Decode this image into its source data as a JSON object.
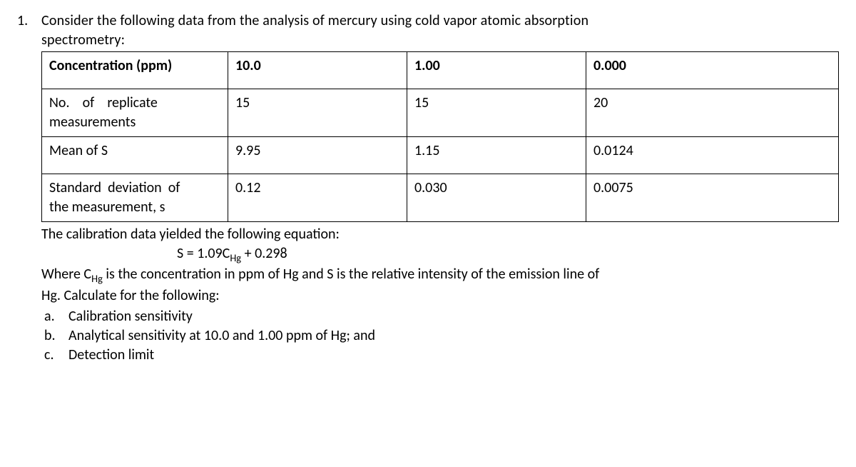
{
  "question_number": "1.",
  "intro_line1": "Consider the following data from the analysis of mercury using cold vapor atomic absorption",
  "intro_line2": "spectrometry:",
  "table": {
    "rows": [
      {
        "label": "Concentration (ppm)",
        "label_bold": true,
        "c1": "10.0",
        "c2": "1.00",
        "c3": "0.000",
        "bold_cells": true,
        "tall": true
      },
      {
        "label_html": "No.&nbsp;&nbsp;&nbsp;&nbsp;of&nbsp;&nbsp;&nbsp;&nbsp;replicate<br>measurements",
        "c1": "15",
        "c2": "15",
        "c3": "20",
        "short": true
      },
      {
        "label": "Mean of S",
        "c1": "9.95",
        "c2": "1.15",
        "c3": "0.0124",
        "tall": true
      },
      {
        "label_html": "Standard&nbsp;&nbsp;deviation&nbsp;&nbsp;of<br>the measurement, s",
        "c1": "0.12",
        "c2": "0.030",
        "c3": "0.0075",
        "short": true
      }
    ]
  },
  "after_table_line": "The calibration data yielded the following equation:",
  "equation": {
    "prefix": "S = 1.09C",
    "sub": "Hg",
    "suffix": "  +  0.298"
  },
  "where_line_prefix": "Where C",
  "where_sub": "Hg",
  "where_line_mid": " is the concentration in ppm of Hg and S is the relative intensity of the emission line of",
  "where_line2": "Hg. Calculate for the following:",
  "subs": [
    {
      "letter": "a.",
      "text": "Calibration sensitivity"
    },
    {
      "letter": "b.",
      "text": "Analytical sensitivity at 10.0 and 1.00 ppm of Hg; and"
    },
    {
      "letter": "c.",
      "text": "Detection limit"
    }
  ]
}
